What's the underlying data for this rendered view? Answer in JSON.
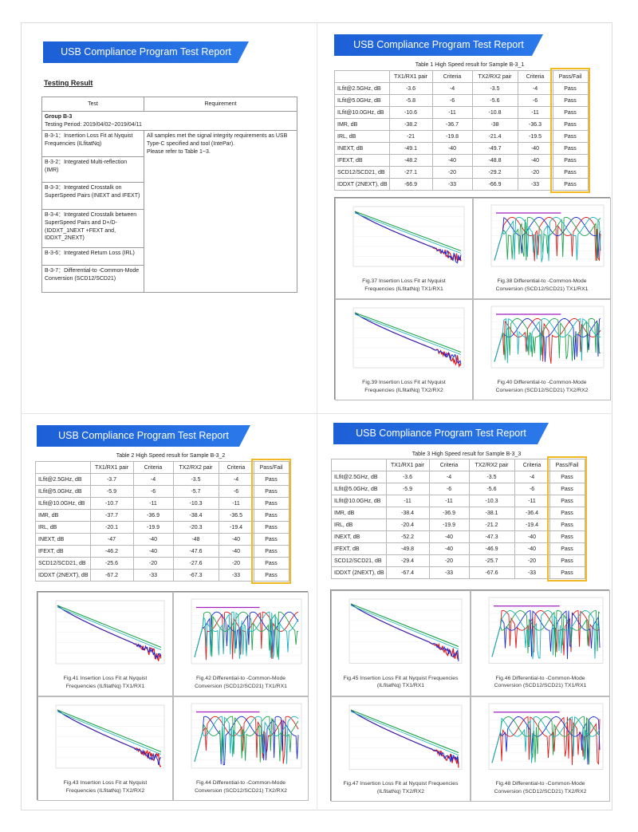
{
  "report_title": "USB Compliance Program Test Report",
  "testing_result": {
    "heading": "Testing Result",
    "col_test": "Test",
    "col_requirement": "Requirement",
    "group": "Group B-3",
    "period": "Testing Period: 2019/04/02~2019/04/11",
    "requirement_text": "All samples met the signal integrity requirements as USB Type-C specified and tool (IntePar).",
    "refer_text": "Please refer to Table 1~3.",
    "tests": [
      "B-3-1：Insertion Loss Fit at Nyquist Frequencies (ILfitatNq)",
      "B-3-2：Integrated Multi-reflection (IMR)",
      "B-3-3：Integrated Crosstalk on SuperSpeed Pairs (INEXT and IFEXT)",
      "B-3-4：Integrated Crosstalk between SuperSpeed Pairs and D+/D- (IDDXT_1NEXT +FEXT and, IDDXT_2NEXT)",
      "B-3-6：Integrated Return Loss (IRL)",
      "B-3-7：Differential-to -Common-Mode Conversion (SCD12/SCD21)"
    ]
  },
  "col_headers": [
    "TX1/RX1 pair",
    "Criteria",
    "TX2/RX2 pair",
    "Criteria",
    "Pass/Fail"
  ],
  "tables": [
    {
      "caption": "Table 1 High Speed result for Sample B-3_1",
      "rows": [
        [
          "ILfit@2.5GHz, dB",
          "-3.6",
          "-4",
          "-3.5",
          "-4",
          "Pass"
        ],
        [
          "ILfit@5.0GHz, dB",
          "-5.8",
          "-6",
          "-5.6",
          "-6",
          "Pass"
        ],
        [
          "ILfit@10.0GHz, dB",
          "-10.6",
          "-11",
          "-10.8",
          "-11",
          "Pass"
        ],
        [
          "IMR, dB",
          "-38.2",
          "-36.7",
          "-38",
          "-36.3",
          "Pass"
        ],
        [
          "IRL, dB",
          "-21",
          "-19.8",
          "-21.4",
          "-19.5",
          "Pass"
        ],
        [
          "INEXT, dB",
          "-49.1",
          "-40",
          "-49.7",
          "-40",
          "Pass"
        ],
        [
          "IFEXT, dB",
          "-48.2",
          "-40",
          "-48.8",
          "-40",
          "Pass"
        ],
        [
          "SCD12/SCD21, dB",
          "-27.1",
          "-20",
          "-29.2",
          "-20",
          "Pass"
        ],
        [
          "IDDXT (2NEXT), dB",
          "-66.9",
          "-33",
          "-66.9",
          "-33",
          "Pass"
        ]
      ],
      "figures": [
        "Fig.37 Insertion Loss Fit at Nyquist Frequencies (ILfitatNq) TX1/RX1",
        "Fig.38 Differential-to -Common-Mode Conversion (SCD12/SCD21) TX1/RX1",
        "Fig.39 Insertion Loss Fit at Nyquist Frequencies (ILfitatNq) TX2/RX2",
        "Fig.40 Differential-to -Common-Mode Conversion (SCD12/SCD21) TX2/RX2"
      ]
    },
    {
      "caption": "Table 2 High Speed result for Sample B-3_2",
      "rows": [
        [
          "ILfit@2.5GHz, dB",
          "-3.7",
          "-4",
          "-3.5",
          "-4",
          "Pass"
        ],
        [
          "ILfit@5.0GHz, dB",
          "-5.9",
          "-6",
          "-5.7",
          "-6",
          "Pass"
        ],
        [
          "ILfit@10.0GHz, dB",
          "-10.7",
          "-11",
          "-10.3",
          "-11",
          "Pass"
        ],
        [
          "IMR, dB",
          "-37.7",
          "-36.9",
          "-38.4",
          "-36.5",
          "Pass"
        ],
        [
          "IRL, dB",
          "-20.1",
          "-19.9",
          "-20.3",
          "-19.4",
          "Pass"
        ],
        [
          "INEXT, dB",
          "-47",
          "-40",
          "-48",
          "-40",
          "Pass"
        ],
        [
          "IFEXT, dB",
          "-46.2",
          "-40",
          "-47.6",
          "-40",
          "Pass"
        ],
        [
          "SCD12/SCD21, dB",
          "-25.6",
          "-20",
          "-27.6",
          "-20",
          "Pass"
        ],
        [
          "IDDXT (2NEXT), dB",
          "-67.2",
          "-33",
          "-67.3",
          "-33",
          "Pass"
        ]
      ],
      "figures": [
        "Fig.41 Insertion Loss Fit at Nyquist Frequencies (ILfitatNq) TX1/RX1",
        "Fig.42 Differential-to -Common-Mode Conversion (SCD12/SCD21) TX1/RX1",
        "Fig.43 Insertion Loss Fit at Nyquist Frequencies (ILfitatNq) TX2/RX2",
        "Fig.44 Differential-to -Common-Mode Conversion (SCD12/SCD21) TX2/RX2"
      ]
    },
    {
      "caption": "Table 3 High Speed result for Sample B-3_3",
      "rows": [
        [
          "ILfit@2.5GHz, dB",
          "-3.6",
          "-4",
          "-3.5",
          "-4",
          "Pass"
        ],
        [
          "ILfit@5.0GHz, dB",
          "-5.9",
          "-6",
          "-5.6",
          "-6",
          "Pass"
        ],
        [
          "ILfit@10.0GHz, dB",
          "-11",
          "-11",
          "-10.3",
          "-11",
          "Pass"
        ],
        [
          "IMR, dB",
          "-38.4",
          "-36.9",
          "-38.1",
          "-36.4",
          "Pass"
        ],
        [
          "IRL, dB",
          "-20.4",
          "-19.9",
          "-21.2",
          "-19.4",
          "Pass"
        ],
        [
          "INEXT, dB",
          "-52.2",
          "-40",
          "-47.3",
          "-40",
          "Pass"
        ],
        [
          "IFEXT, dB",
          "-49.8",
          "-40",
          "-46.9",
          "-40",
          "Pass"
        ],
        [
          "SCD12/SCD21, dB",
          "-29.4",
          "-20",
          "-25.7",
          "-20",
          "Pass"
        ],
        [
          "IDDXT (2NEXT), dB",
          "-67.4",
          "-33",
          "-67.6",
          "-33",
          "Pass"
        ]
      ],
      "figures": [
        "Fig.45 Insertion Loss Fit at Nyquist Frequencies (ILfitatNq) TX1/RX1",
        "Fig.46 Differential-to -Common-Mode Conversion (SCD12/SCD21) TX1/RX1",
        "Fig.47 Insertion Loss Fit at Nyquist Frequencies (ILfitatNq) TX2/RX2",
        "Fig.48 Differential-to -Common-Mode Conversion (SCD12/SCD21) TX2/RX2"
      ]
    }
  ],
  "colors": {
    "banner": "#1d5fd6",
    "pass_fail_highlight": "#f1b820",
    "trace_red": "#e01818",
    "trace_blue": "#1a2ad0",
    "trace_green": "#1fa34a",
    "trace_cyan": "#19b3b8",
    "limit_line": "#a020c0"
  }
}
